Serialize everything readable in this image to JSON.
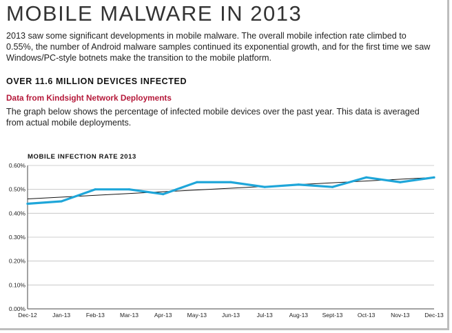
{
  "page": {
    "title": "MOBILE MALWARE IN 2013",
    "intro": "2013 saw some significant developments in mobile malware. The overall mobile infection rate climbed to 0.55%, the number of Android malware samples continued its exponential growth, and for the first time we saw Windows/PC-style botnets make the transition to the mobile platform.",
    "heading": "OVER 11.6 MILLION DEVICES INFECTED",
    "subheading": "Data from Kindsight Network Deployments",
    "description": "The graph below shows the percentage of infected mobile devices over the past year. This data is averaged from actual mobile deployments."
  },
  "chart_data": {
    "type": "line",
    "title": "MOBILE INFECTION RATE 2013",
    "categories": [
      "Dec-12",
      "Jan-13",
      "Feb-13",
      "Mar-13",
      "Apr-13",
      "May-13",
      "Jun-13",
      "Jul-13",
      "Aug-13",
      "Sept-13",
      "Oct-13",
      "Nov-13",
      "Dec-13"
    ],
    "series": [
      {
        "values": [
          0.44,
          0.45,
          0.5,
          0.5,
          0.48,
          0.53,
          0.53,
          0.51,
          0.52,
          0.51,
          0.55,
          0.53,
          0.55
        ],
        "color": "#1fa6d9"
      }
    ],
    "trendline": {
      "start": 0.46,
      "end": 0.55,
      "color": "#111111"
    },
    "y_ticks": [
      "0.00%",
      "0.10%",
      "0.20%",
      "0.30%",
      "0.40%",
      "0.50%",
      "0.60%"
    ],
    "ylim": [
      0,
      0.6
    ],
    "grid": true,
    "legend": "none"
  }
}
